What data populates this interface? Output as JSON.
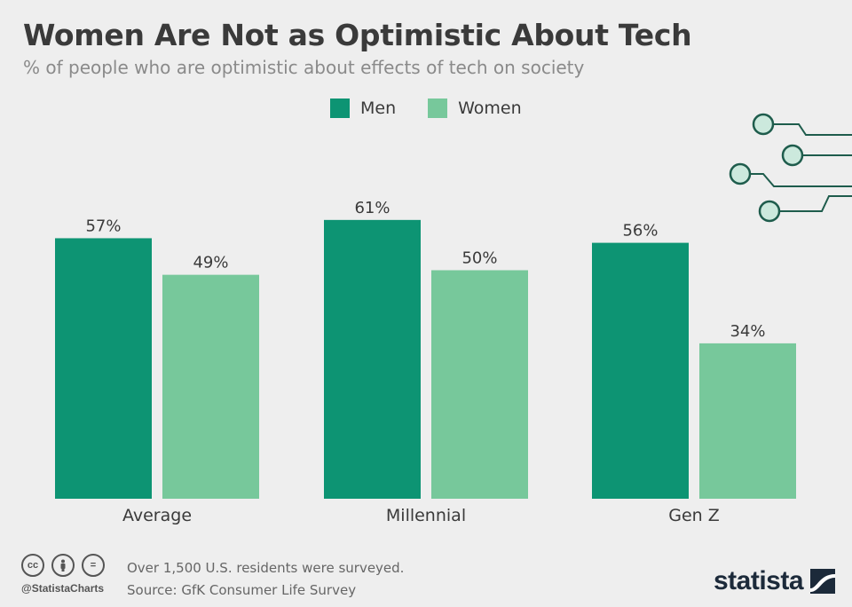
{
  "title": "Women Are Not as Optimistic About Tech",
  "subtitle": "% of people who are optimistic about effects of tech on society",
  "legend": {
    "men": "Men",
    "women": "Women"
  },
  "colors": {
    "men": "#0d9473",
    "women": "#77c89b",
    "text": "#3a3a3a",
    "circuit": "#1e5c4c"
  },
  "chart_data": {
    "type": "bar",
    "title": "Women Are Not as Optimistic About Tech",
    "ylabel": "% of people who are optimistic about effects of tech on society",
    "xlabel": "",
    "categories": [
      "Average",
      "Millennial",
      "Gen Z"
    ],
    "series": [
      {
        "name": "Men",
        "values": [
          57,
          61,
          56
        ],
        "labels": [
          "57%",
          "61%",
          "56%"
        ]
      },
      {
        "name": "Women",
        "values": [
          49,
          50,
          34
        ],
        "labels": [
          "49%",
          "50%",
          "34%"
        ]
      }
    ],
    "ylim": [
      0,
      100
    ],
    "grid": false,
    "legend_position": "top-center"
  },
  "footer": {
    "cc_icons": [
      "cc",
      "by",
      "="
    ],
    "handle": "@StatistaCharts",
    "note": "Over 1,500 U.S. residents were surveyed.",
    "source": "Source: GfK Consumer Life Survey",
    "brand": "statista"
  }
}
